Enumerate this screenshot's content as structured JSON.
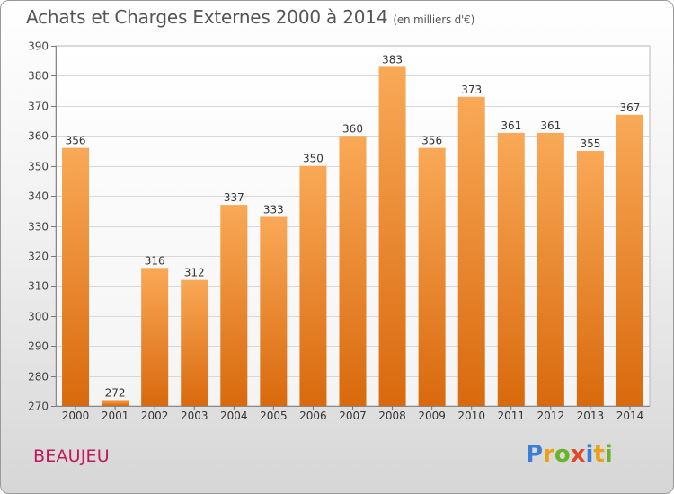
{
  "header": {
    "title": "Achats et Charges Externes 2000 à 2014",
    "subtitle": "(en milliers d'€)"
  },
  "footer": {
    "city": "BEAUJEU",
    "brand_letters": [
      {
        "ch": "P",
        "color": "#3a7fd5"
      },
      {
        "ch": "r",
        "color": "#e8a21a"
      },
      {
        "ch": "o",
        "color": "#6ab42d"
      },
      {
        "ch": "x",
        "color": "#e0482e"
      },
      {
        "ch": "i",
        "color": "#3a7fd5"
      },
      {
        "ch": "t",
        "color": "#e8a21a"
      },
      {
        "ch": "i",
        "color": "#6ab42d"
      }
    ]
  },
  "chart_data": {
    "type": "bar",
    "categories": [
      "2000",
      "2001",
      "2002",
      "2003",
      "2004",
      "2005",
      "2006",
      "2007",
      "2008",
      "2009",
      "2010",
      "2011",
      "2012",
      "2013",
      "2014"
    ],
    "values": [
      356,
      272,
      316,
      312,
      337,
      333,
      350,
      360,
      383,
      356,
      373,
      361,
      361,
      355,
      367
    ],
    "ylim": [
      270,
      390
    ],
    "yticks": [
      270,
      280,
      290,
      300,
      310,
      320,
      330,
      340,
      350,
      360,
      370,
      380,
      390
    ],
    "grid": true,
    "bar_color": "#f08a24",
    "title": "Achats et Charges Externes 2000 à 2014",
    "xlabel": "",
    "ylabel": ""
  }
}
